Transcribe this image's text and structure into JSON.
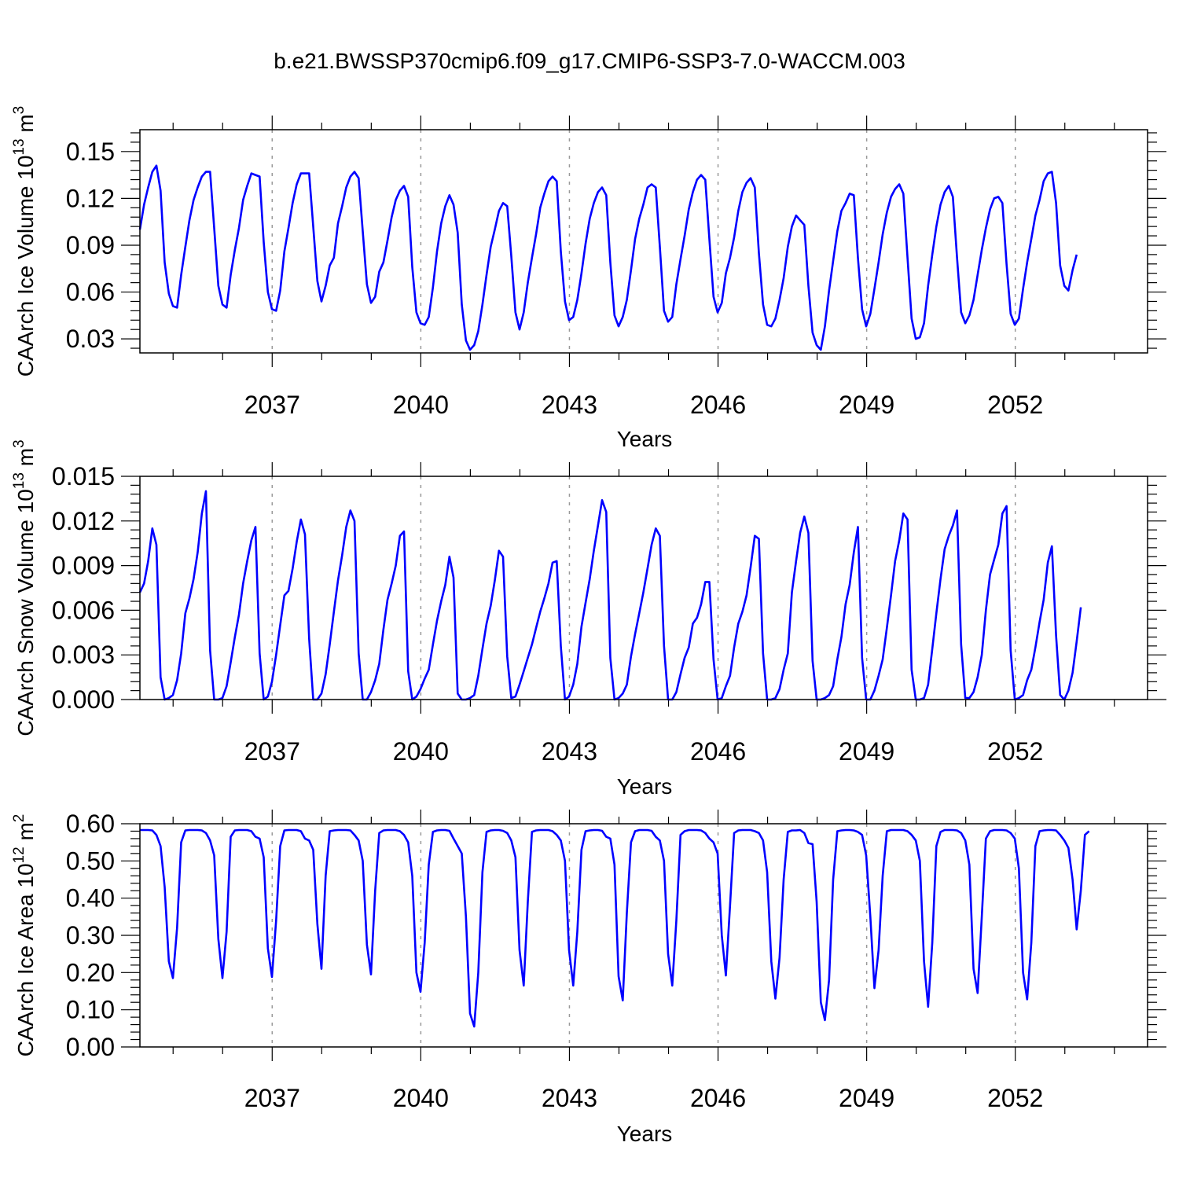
{
  "title": "b.e21.BWSSP370cmip6.f09_g17.CMIP6-SSP3-7.0-WACCM.003",
  "line_color": "#0000ff",
  "chart_data": [
    {
      "type": "line",
      "ylabel": "CAArch Ice Volume",
      "yunit_base": "10",
      "yunit_exp": "13",
      "yunit_name": "m",
      "yunit_pow": "3",
      "xlabel": "Years",
      "xlim": [
        2034.33,
        2054.67
      ],
      "ylim": [
        0.021,
        0.164
      ],
      "yticks": [
        "0.03",
        "0.06",
        "0.09",
        "0.12",
        "0.15"
      ],
      "xticks": [
        "2037",
        "2040",
        "2043",
        "2046",
        "2049",
        "2052"
      ],
      "grid": "vertical dashed at major x ticks",
      "series": [
        {
          "x_start": 2034.33,
          "x_step": 0.0833,
          "values": [
            0.1,
            0.116,
            0.127,
            0.137,
            0.141,
            0.125,
            0.079,
            0.059,
            0.051,
            0.05,
            0.071,
            0.089,
            0.106,
            0.119,
            0.127,
            0.134,
            0.137,
            0.137,
            0.101,
            0.064,
            0.052,
            0.05,
            0.071,
            0.087,
            0.101,
            0.119,
            0.128,
            0.136,
            0.135,
            0.134,
            0.092,
            0.06,
            0.049,
            0.048,
            0.061,
            0.086,
            0.101,
            0.117,
            0.129,
            0.136,
            0.136,
            0.136,
            0.102,
            0.067,
            0.054,
            0.064,
            0.077,
            0.082,
            0.104,
            0.115,
            0.127,
            0.134,
            0.137,
            0.133,
            0.099,
            0.065,
            0.053,
            0.057,
            0.073,
            0.079,
            0.093,
            0.108,
            0.119,
            0.125,
            0.128,
            0.121,
            0.076,
            0.047,
            0.04,
            0.039,
            0.044,
            0.063,
            0.086,
            0.104,
            0.115,
            0.122,
            0.116,
            0.098,
            0.052,
            0.029,
            0.023,
            0.026,
            0.035,
            0.052,
            0.071,
            0.089,
            0.1,
            0.112,
            0.117,
            0.115,
            0.083,
            0.047,
            0.036,
            0.047,
            0.066,
            0.082,
            0.097,
            0.114,
            0.123,
            0.131,
            0.134,
            0.131,
            0.086,
            0.054,
            0.042,
            0.044,
            0.055,
            0.072,
            0.091,
            0.107,
            0.117,
            0.124,
            0.127,
            0.122,
            0.079,
            0.045,
            0.038,
            0.044,
            0.055,
            0.074,
            0.094,
            0.107,
            0.116,
            0.127,
            0.129,
            0.127,
            0.089,
            0.048,
            0.041,
            0.044,
            0.065,
            0.081,
            0.096,
            0.113,
            0.124,
            0.132,
            0.135,
            0.132,
            0.094,
            0.057,
            0.047,
            0.053,
            0.072,
            0.082,
            0.095,
            0.112,
            0.124,
            0.13,
            0.133,
            0.127,
            0.085,
            0.052,
            0.039,
            0.038,
            0.043,
            0.055,
            0.069,
            0.089,
            0.102,
            0.109,
            0.106,
            0.103,
            0.064,
            0.034,
            0.026,
            0.023,
            0.038,
            0.061,
            0.08,
            0.099,
            0.112,
            0.117,
            0.123,
            0.122,
            0.082,
            0.049,
            0.038,
            0.046,
            0.062,
            0.079,
            0.097,
            0.111,
            0.121,
            0.126,
            0.129,
            0.123,
            0.082,
            0.043,
            0.03,
            0.031,
            0.04,
            0.064,
            0.084,
            0.102,
            0.116,
            0.124,
            0.128,
            0.121,
            0.082,
            0.047,
            0.04,
            0.045,
            0.055,
            0.071,
            0.087,
            0.101,
            0.113,
            0.12,
            0.121,
            0.117,
            0.078,
            0.046,
            0.039,
            0.043,
            0.062,
            0.079,
            0.094,
            0.109,
            0.119,
            0.131,
            0.136,
            0.137,
            0.117,
            0.077,
            0.064,
            0.061,
            0.074,
            0.084
          ]
        }
      ]
    },
    {
      "type": "line",
      "ylabel": "CAArch Snow Volume",
      "yunit_base": "10",
      "yunit_exp": "13",
      "yunit_name": "m",
      "yunit_pow": "3",
      "xlabel": "Years",
      "xlim": [
        2034.33,
        2054.67
      ],
      "ylim": [
        0.0,
        0.015
      ],
      "yticks": [
        "0.000",
        "0.003",
        "0.006",
        "0.009",
        "0.012",
        "0.015"
      ],
      "xticks": [
        "2037",
        "2040",
        "2043",
        "2046",
        "2049",
        "2052"
      ],
      "grid": "vertical dashed at major x ticks",
      "series": [
        {
          "x_start": 2034.33,
          "x_step": 0.0833,
          "values": [
            0.0072,
            0.0078,
            0.0093,
            0.0115,
            0.0104,
            0.0015,
            0.0,
            0.0001,
            0.0003,
            0.0013,
            0.0031,
            0.0058,
            0.0068,
            0.0081,
            0.0099,
            0.0125,
            0.014,
            0.0033,
            0.0,
            0.0,
            0.0001,
            0.0009,
            0.0025,
            0.0042,
            0.0057,
            0.0078,
            0.0093,
            0.0107,
            0.0116,
            0.0031,
            0.0,
            0.0002,
            0.0012,
            0.003,
            0.005,
            0.007,
            0.0073,
            0.0088,
            0.0106,
            0.0121,
            0.0111,
            0.0041,
            0.0,
            0.0,
            0.0004,
            0.0017,
            0.0037,
            0.0059,
            0.008,
            0.0097,
            0.0116,
            0.0127,
            0.012,
            0.0031,
            0.0,
            0.0,
            0.0005,
            0.0013,
            0.0024,
            0.0047,
            0.0067,
            0.0078,
            0.009,
            0.011,
            0.0113,
            0.0019,
            0.0,
            0.0002,
            0.0007,
            0.0014,
            0.002,
            0.0037,
            0.0053,
            0.0066,
            0.0077,
            0.0096,
            0.0082,
            0.0004,
            0.0,
            0.0,
            0.0001,
            0.0003,
            0.0016,
            0.0034,
            0.0051,
            0.0063,
            0.008,
            0.01,
            0.0096,
            0.0029,
            0.0001,
            0.0002,
            0.001,
            0.0019,
            0.0028,
            0.0037,
            0.0048,
            0.0059,
            0.0068,
            0.0078,
            0.0092,
            0.0093,
            0.0036,
            0.0,
            0.0002,
            0.001,
            0.0024,
            0.0049,
            0.0065,
            0.0081,
            0.01,
            0.0117,
            0.0134,
            0.0126,
            0.0028,
            0.0,
            0.0001,
            0.0004,
            0.001,
            0.0029,
            0.0044,
            0.0058,
            0.0072,
            0.0088,
            0.0104,
            0.0115,
            0.011,
            0.0036,
            0.0,
            0.0,
            0.0005,
            0.0017,
            0.0028,
            0.0035,
            0.0051,
            0.0055,
            0.0064,
            0.0079,
            0.0079,
            0.0027,
            0.0,
            0.0001,
            0.0009,
            0.0016,
            0.0035,
            0.0051,
            0.0059,
            0.007,
            0.0089,
            0.011,
            0.0108,
            0.0031,
            0.0,
            0.0,
            0.0001,
            0.0007,
            0.002,
            0.0031,
            0.0072,
            0.0093,
            0.0112,
            0.0123,
            0.0112,
            0.0026,
            0.0,
            0.0,
            0.0001,
            0.0003,
            0.0009,
            0.0027,
            0.0042,
            0.0064,
            0.0077,
            0.0099,
            0.0116,
            0.0028,
            0.0,
            0.0,
            0.0006,
            0.0016,
            0.0027,
            0.0048,
            0.007,
            0.0093,
            0.0107,
            0.0125,
            0.0121,
            0.002,
            0.0,
            0.0,
            0.0001,
            0.001,
            0.0034,
            0.0058,
            0.0081,
            0.0101,
            0.011,
            0.0117,
            0.0127,
            0.0037,
            0.0001,
            0.0001,
            0.0005,
            0.0015,
            0.003,
            0.006,
            0.0084,
            0.0094,
            0.0104,
            0.0125,
            0.013,
            0.0033,
            0.0,
            0.0001,
            0.0003,
            0.0013,
            0.002,
            0.0035,
            0.0052,
            0.0067,
            0.0092,
            0.0103,
            0.0043,
            0.0003,
            0.0,
            0.0006,
            0.0018,
            0.0039,
            0.0062
          ]
        }
      ]
    },
    {
      "type": "line",
      "ylabel": "CAArch Ice Area",
      "yunit_base": "10",
      "yunit_exp": "12",
      "yunit_name": "m",
      "yunit_pow": "2",
      "xlabel": "Years",
      "xlim": [
        2034.33,
        2054.67
      ],
      "ylim": [
        0.0,
        0.6
      ],
      "yticks": [
        "0.00",
        "0.10",
        "0.20",
        "0.30",
        "0.40",
        "0.50",
        "0.60"
      ],
      "xticks": [
        "2037",
        "2040",
        "2043",
        "2046",
        "2049",
        "2052"
      ],
      "grid": "vertical dashed at major x ticks",
      "series": [
        {
          "x_start": 2034.33,
          "x_step": 0.0833,
          "values": [
            0.583,
            0.583,
            0.583,
            0.582,
            0.57,
            0.54,
            0.43,
            0.23,
            0.185,
            0.32,
            0.55,
            0.582,
            0.583,
            0.583,
            0.583,
            0.582,
            0.575,
            0.555,
            0.515,
            0.29,
            0.185,
            0.31,
            0.565,
            0.582,
            0.583,
            0.583,
            0.583,
            0.58,
            0.565,
            0.56,
            0.51,
            0.265,
            0.188,
            0.34,
            0.54,
            0.582,
            0.583,
            0.583,
            0.583,
            0.58,
            0.56,
            0.555,
            0.53,
            0.33,
            0.21,
            0.46,
            0.58,
            0.582,
            0.583,
            0.583,
            0.583,
            0.582,
            0.57,
            0.555,
            0.5,
            0.275,
            0.195,
            0.42,
            0.575,
            0.582,
            0.583,
            0.583,
            0.583,
            0.58,
            0.57,
            0.55,
            0.46,
            0.2,
            0.148,
            0.28,
            0.49,
            0.578,
            0.582,
            0.583,
            0.583,
            0.581,
            0.56,
            0.54,
            0.52,
            0.35,
            0.09,
            0.055,
            0.2,
            0.47,
            0.578,
            0.582,
            0.583,
            0.583,
            0.581,
            0.575,
            0.555,
            0.51,
            0.26,
            0.165,
            0.39,
            0.578,
            0.582,
            0.583,
            0.583,
            0.583,
            0.58,
            0.57,
            0.555,
            0.5,
            0.26,
            0.165,
            0.31,
            0.53,
            0.58,
            0.582,
            0.583,
            0.583,
            0.581,
            0.565,
            0.56,
            0.49,
            0.19,
            0.125,
            0.36,
            0.55,
            0.58,
            0.583,
            0.583,
            0.583,
            0.581,
            0.565,
            0.555,
            0.5,
            0.25,
            0.165,
            0.34,
            0.57,
            0.58,
            0.583,
            0.583,
            0.583,
            0.582,
            0.575,
            0.56,
            0.55,
            0.52,
            0.3,
            0.192,
            0.38,
            0.575,
            0.582,
            0.583,
            0.583,
            0.583,
            0.58,
            0.575,
            0.555,
            0.47,
            0.23,
            0.13,
            0.24,
            0.45,
            0.578,
            0.582,
            0.582,
            0.583,
            0.575,
            0.548,
            0.545,
            0.39,
            0.12,
            0.072,
            0.18,
            0.45,
            0.58,
            0.582,
            0.583,
            0.583,
            0.582,
            0.578,
            0.57,
            0.515,
            0.35,
            0.158,
            0.26,
            0.46,
            0.58,
            0.583,
            0.583,
            0.583,
            0.583,
            0.58,
            0.57,
            0.555,
            0.5,
            0.23,
            0.108,
            0.28,
            0.54,
            0.578,
            0.583,
            0.583,
            0.583,
            0.582,
            0.575,
            0.555,
            0.49,
            0.21,
            0.145,
            0.35,
            0.56,
            0.58,
            0.583,
            0.583,
            0.583,
            0.582,
            0.575,
            0.56,
            0.48,
            0.2,
            0.128,
            0.28,
            0.54,
            0.58,
            0.582,
            0.583,
            0.583,
            0.582,
            0.57,
            0.555,
            0.535,
            0.45,
            0.316,
            0.42,
            0.57,
            0.58
          ]
        }
      ]
    }
  ]
}
